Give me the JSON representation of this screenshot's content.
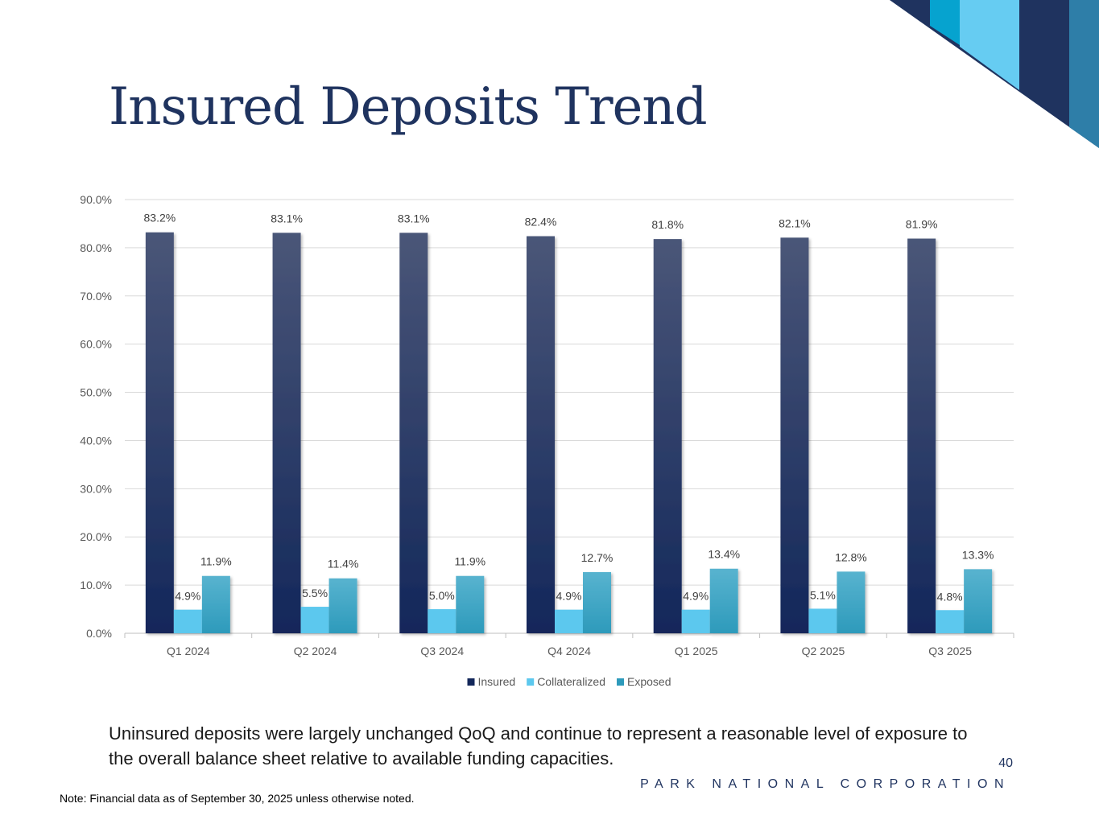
{
  "slide": {
    "title": "Insured Deposits Trend",
    "summary": "Uninsured deposits were largely unchanged QoQ and continue to represent a reasonable level of exposure to the overall balance sheet relative to available funding capacities.",
    "page_number": "40",
    "company": "PARK NATIONAL CORPORATION",
    "note": "Note: Financial data as of September 30, 2025 unless otherwise noted."
  },
  "colors": {
    "navy": "#1f335f",
    "insured_top": "#4a5678",
    "insured_bottom": "#13275a",
    "collateralized": "#5cc8ee",
    "exposed_top": "#58b3cf",
    "exposed_bottom": "#2d9abb",
    "grid": "#d9d9d9"
  },
  "chart_data": {
    "type": "bar",
    "categories": [
      "Q1 2024",
      "Q2 2024",
      "Q3 2024",
      "Q4 2024",
      "Q1 2025",
      "Q2 2025",
      "Q3 2025"
    ],
    "series": [
      {
        "name": "Insured",
        "values": [
          83.2,
          83.1,
          83.1,
          82.4,
          81.8,
          82.1,
          81.9
        ]
      },
      {
        "name": "Collateralized",
        "values": [
          4.9,
          5.5,
          5.0,
          4.9,
          4.9,
          5.1,
          4.8
        ]
      },
      {
        "name": "Exposed",
        "values": [
          11.9,
          11.4,
          11.9,
          12.7,
          13.4,
          12.8,
          13.3
        ]
      }
    ],
    "y_ticks": [
      "0.0%",
      "10.0%",
      "20.0%",
      "30.0%",
      "40.0%",
      "50.0%",
      "60.0%",
      "70.0%",
      "80.0%",
      "90.0%"
    ],
    "ylim": [
      0,
      90
    ],
    "value_format": "percent_1dp",
    "legend_position": "bottom",
    "grid": true,
    "title": "",
    "xlabel": "",
    "ylabel": ""
  }
}
